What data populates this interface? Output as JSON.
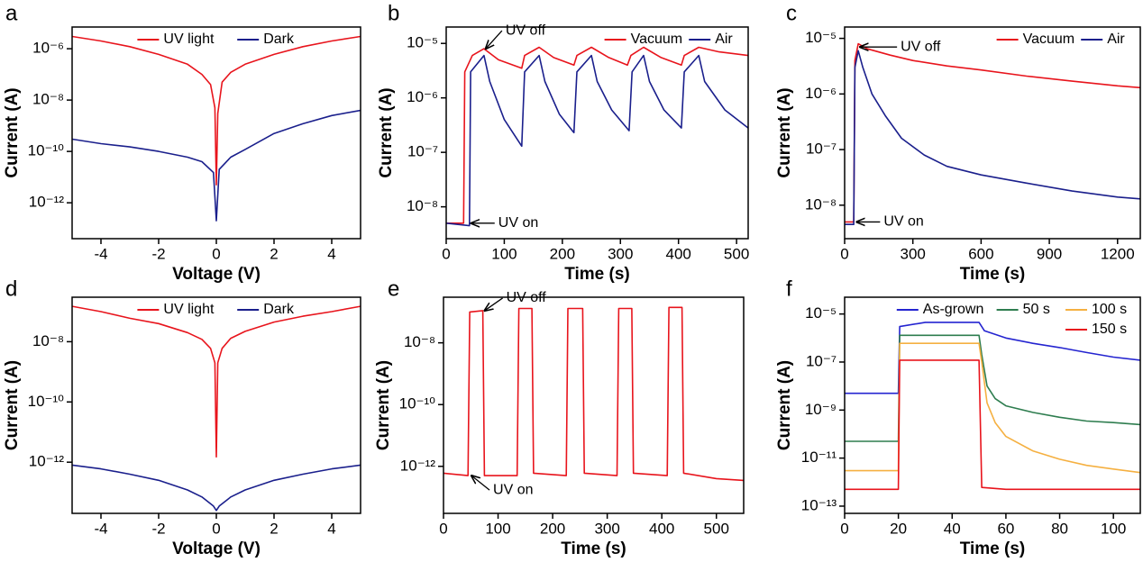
{
  "chart_data": [
    {
      "type": "line",
      "panel_label": "a",
      "xlabel": "Voltage (V)",
      "ylabel": "Current (A)",
      "yscale": "log",
      "xlim": [
        -5,
        5
      ],
      "xticks": [
        -4,
        -2,
        0,
        2,
        4
      ],
      "ylim": [
        4e-14,
        7e-06
      ],
      "yticks": [
        {
          "value": 1e-12,
          "label": "10⁻¹²"
        },
        {
          "value": 1e-10,
          "label": "10⁻¹⁰"
        },
        {
          "value": 1e-08,
          "label": "10⁻⁸"
        },
        {
          "value": 1e-06,
          "label": "10⁻⁶"
        }
      ],
      "legend": "upper center",
      "series": [
        {
          "name": "UV light",
          "color": "#e8141c",
          "x": [
            -5,
            -4,
            -3,
            -2,
            -1,
            -0.5,
            -0.2,
            -0.05,
            0,
            0.05,
            0.2,
            0.5,
            1,
            2,
            3,
            4,
            5
          ],
          "values": [
            3e-06,
            2e-06,
            1.2e-06,
            6e-07,
            2.5e-07,
            1e-07,
            4e-08,
            5e-09,
            5e-12,
            3e-09,
            5e-08,
            1.2e-07,
            2.5e-07,
            6e-07,
            1.2e-06,
            2e-06,
            3e-06
          ]
        },
        {
          "name": "Dark",
          "color": "#1a1f8c",
          "x": [
            -5,
            -4,
            -3,
            -2,
            -1,
            -0.5,
            -0.1,
            0,
            0.1,
            0.5,
            1,
            2,
            3,
            4,
            5
          ],
          "values": [
            3e-10,
            2e-10,
            1.5e-10,
            1e-10,
            6e-11,
            4e-11,
            1.5e-11,
            2e-13,
            2e-11,
            6e-11,
            1.2e-10,
            5e-10,
            1.2e-09,
            2.5e-09,
            4e-09
          ]
        }
      ]
    },
    {
      "type": "line",
      "panel_label": "b",
      "xlabel": "Time (s)",
      "ylabel": "Current (A)",
      "yscale": "log",
      "xlim": [
        0,
        520
      ],
      "xticks": [
        0,
        100,
        200,
        300,
        400,
        500
      ],
      "ylim": [
        2.6e-09,
        2e-05
      ],
      "yticks": [
        {
          "value": 1e-08,
          "label": "10⁻⁸"
        },
        {
          "value": 1e-07,
          "label": "10⁻⁷"
        },
        {
          "value": 1e-06,
          "label": "10⁻⁶"
        },
        {
          "value": 1e-05,
          "label": "10⁻⁵"
        }
      ],
      "legend": "upper right",
      "annotations": [
        {
          "text": "UV off",
          "x": 65,
          "y": 8e-06
        },
        {
          "text": "UV on",
          "x": 40,
          "y": 5e-09
        }
      ],
      "series": [
        {
          "name": "Vacuum",
          "color": "#e8141c",
          "x": [
            0,
            30,
            32,
            45,
            65,
            90,
            130,
            135,
            160,
            185,
            220,
            225,
            250,
            280,
            312,
            318,
            340,
            370,
            405,
            410,
            435,
            470,
            520
          ],
          "values": [
            5e-09,
            5e-09,
            3e-06,
            6e-06,
            8e-06,
            5e-06,
            3.5e-06,
            6e-06,
            8.5e-06,
            5.5e-06,
            4e-06,
            6e-06,
            8.5e-06,
            5.5e-06,
            4e-06,
            6e-06,
            8.5e-06,
            5.5e-06,
            4e-06,
            6e-06,
            8.5e-06,
            7e-06,
            6e-06
          ]
        },
        {
          "name": "Air",
          "color": "#1a1f8c",
          "x": [
            0,
            40,
            42,
            65,
            75,
            100,
            130,
            135,
            160,
            170,
            195,
            220,
            225,
            250,
            260,
            285,
            315,
            320,
            340,
            350,
            375,
            405,
            410,
            435,
            445,
            480,
            520
          ],
          "values": [
            5e-09,
            4.5e-09,
            3e-06,
            6e-06,
            2e-06,
            4e-07,
            1.3e-07,
            3e-06,
            6e-06,
            2e-06,
            5e-07,
            2.3e-07,
            3e-06,
            6e-06,
            2e-06,
            6e-07,
            2.5e-07,
            3e-06,
            6e-06,
            2e-06,
            6e-07,
            2.8e-07,
            3e-06,
            6e-06,
            2e-06,
            6e-07,
            2.8e-07
          ]
        }
      ]
    },
    {
      "type": "line",
      "panel_label": "c",
      "xlabel": "Time (s)",
      "ylabel": "Current (A)",
      "yscale": "log",
      "xlim": [
        0,
        1300
      ],
      "xticks": [
        0,
        300,
        600,
        900,
        1200
      ],
      "ylim": [
        2.5e-09,
        1.6e-05
      ],
      "yticks": [
        {
          "value": 1e-08,
          "label": "10⁻⁸"
        },
        {
          "value": 1e-07,
          "label": "10⁻⁷"
        },
        {
          "value": 1e-06,
          "label": "10⁻⁶"
        },
        {
          "value": 1e-05,
          "label": "10⁻⁵"
        }
      ],
      "legend": "upper right",
      "annotations": [
        {
          "text": "UV off",
          "x": 60,
          "y": 7e-06
        },
        {
          "text": "UV on",
          "x": 45,
          "y": 5e-09
        }
      ],
      "series": [
        {
          "name": "Vacuum",
          "color": "#e8141c",
          "x": [
            0,
            40,
            45,
            60,
            100,
            200,
            300,
            450,
            600,
            800,
            1000,
            1200,
            1300
          ],
          "values": [
            5e-09,
            5e-09,
            4e-06,
            8e-06,
            6.5e-06,
            5e-06,
            4e-06,
            3.2e-06,
            2.7e-06,
            2.1e-06,
            1.7e-06,
            1.4e-06,
            1.3e-06
          ]
        },
        {
          "name": "Air",
          "color": "#1a1f8c",
          "x": [
            0,
            40,
            45,
            60,
            80,
            120,
            180,
            250,
            350,
            450,
            600,
            800,
            1000,
            1200,
            1300
          ],
          "values": [
            4.5e-09,
            4.5e-09,
            3e-06,
            6e-06,
            3e-06,
            1e-06,
            4e-07,
            1.6e-07,
            8e-08,
            5e-08,
            3.5e-08,
            2.5e-08,
            1.8e-08,
            1.4e-08,
            1.3e-08
          ]
        }
      ]
    },
    {
      "type": "line",
      "panel_label": "d",
      "xlabel": "Voltage (V)",
      "ylabel": "Current (A)",
      "yscale": "log",
      "xlim": [
        -5,
        5
      ],
      "xticks": [
        -4,
        -2,
        0,
        2,
        4
      ],
      "ylim": [
        2e-14,
        3e-07
      ],
      "yticks": [
        {
          "value": 1e-12,
          "label": "10⁻¹²"
        },
        {
          "value": 1e-10,
          "label": "10⁻¹⁰"
        },
        {
          "value": 1e-08,
          "label": "10⁻⁸"
        }
      ],
      "legend": "upper center",
      "series": [
        {
          "name": "UV light",
          "color": "#e8141c",
          "x": [
            -5,
            -4,
            -3,
            -2,
            -1,
            -0.5,
            -0.2,
            -0.05,
            0,
            0.05,
            0.2,
            0.5,
            1,
            2,
            3,
            4,
            5
          ],
          "values": [
            1.5e-07,
            1e-07,
            6e-08,
            4e-08,
            2e-08,
            1.2e-08,
            6e-09,
            2e-09,
            1.5e-12,
            2e-09,
            6e-09,
            1.3e-08,
            2.2e-08,
            4.5e-08,
            7e-08,
            1e-07,
            1.5e-07
          ]
        },
        {
          "name": "Dark",
          "color": "#1a1f8c",
          "x": [
            -5,
            -4,
            -3,
            -2,
            -1,
            -0.5,
            -0.1,
            0,
            0.1,
            0.5,
            1,
            2,
            3,
            4,
            5
          ],
          "values": [
            8e-13,
            6e-13,
            4e-13,
            2.5e-13,
            1.2e-13,
            7e-14,
            3.5e-14,
            2.5e-14,
            3.5e-14,
            7e-14,
            1.2e-13,
            2.5e-13,
            4e-13,
            6e-13,
            8e-13
          ]
        }
      ]
    },
    {
      "type": "line",
      "panel_label": "e",
      "xlabel": "Time (s)",
      "ylabel": "Current (A)",
      "yscale": "log",
      "xlim": [
        0,
        550
      ],
      "xticks": [
        0,
        100,
        200,
        300,
        400,
        500
      ],
      "ylim": [
        3e-14,
        3e-07
      ],
      "yticks": [
        {
          "value": 1e-12,
          "label": "10⁻¹²"
        },
        {
          "value": 1e-10,
          "label": "10⁻¹⁰"
        },
        {
          "value": 1e-08,
          "label": "10⁻⁸"
        }
      ],
      "annotations": [
        {
          "text": "UV off",
          "x": 72,
          "y": 1.1e-07
        },
        {
          "text": "UV on",
          "x": 48,
          "y": 5e-13
        }
      ],
      "color": "#e8141c",
      "x": [
        0,
        45,
        48,
        72,
        75,
        135,
        138,
        162,
        165,
        225,
        228,
        255,
        258,
        318,
        321,
        345,
        348,
        410,
        413,
        437,
        440,
        500,
        550
      ],
      "values": [
        6e-13,
        5e-13,
        1e-07,
        1.1e-07,
        5e-13,
        5e-13,
        1.3e-07,
        1.3e-07,
        6e-13,
        5e-13,
        1.3e-07,
        1.3e-07,
        6e-13,
        5e-13,
        1.3e-07,
        1.3e-07,
        6e-13,
        5e-13,
        1.4e-07,
        1.4e-07,
        6e-13,
        4e-13,
        3.5e-13
      ]
    },
    {
      "type": "line",
      "panel_label": "f",
      "xlabel": "Time (s)",
      "ylabel": "Current (A)",
      "yscale": "log",
      "xlim": [
        0,
        110
      ],
      "xticks": [
        0,
        20,
        40,
        60,
        80,
        100
      ],
      "ylim": [
        5e-14,
        5e-05
      ],
      "yticks": [
        {
          "value": 1e-13,
          "label": "10⁻¹³"
        },
        {
          "value": 1e-11,
          "label": "10⁻¹¹"
        },
        {
          "value": 1e-09,
          "label": "10⁻⁹"
        },
        {
          "value": 1e-07,
          "label": "10⁻⁷"
        },
        {
          "value": 1e-05,
          "label": "10⁻⁵"
        }
      ],
      "legend": "upper right",
      "series": [
        {
          "name": "As-grown",
          "color": "#2424d0",
          "x": [
            0,
            20,
            20.5,
            30,
            50,
            52,
            60,
            70,
            80,
            90,
            100,
            110
          ],
          "values": [
            5e-09,
            5e-09,
            3e-06,
            4.5e-06,
            4.5e-06,
            2e-06,
            1e-06,
            6e-07,
            4e-07,
            2.5e-07,
            1.6e-07,
            1.2e-07
          ]
        },
        {
          "name": "50 s",
          "color": "#2e7d4f",
          "x": [
            0,
            20,
            20.5,
            50,
            51,
            53,
            56,
            60,
            70,
            80,
            90,
            100,
            110
          ],
          "values": [
            5e-11,
            5e-11,
            1.3e-06,
            1.3e-06,
            2e-07,
            1e-08,
            3e-09,
            1.5e-09,
            8e-10,
            5e-10,
            3.5e-10,
            3e-10,
            2.5e-10
          ]
        },
        {
          "name": "100 s",
          "color": "#f5b041",
          "x": [
            0,
            20,
            20.5,
            50,
            51,
            53,
            56,
            60,
            70,
            80,
            90,
            100,
            110
          ],
          "values": [
            3e-12,
            3e-12,
            6e-07,
            6e-07,
            1e-07,
            2e-09,
            3e-10,
            8e-11,
            2e-11,
            9e-12,
            5e-12,
            3.5e-12,
            2.5e-12
          ]
        },
        {
          "name": "150 s",
          "color": "#e8141c",
          "x": [
            0,
            20,
            20.5,
            50,
            51,
            60,
            80,
            110
          ],
          "values": [
            5e-13,
            5e-13,
            1.2e-07,
            1.2e-07,
            6e-13,
            5e-13,
            5e-13,
            5e-13
          ]
        }
      ]
    }
  ]
}
